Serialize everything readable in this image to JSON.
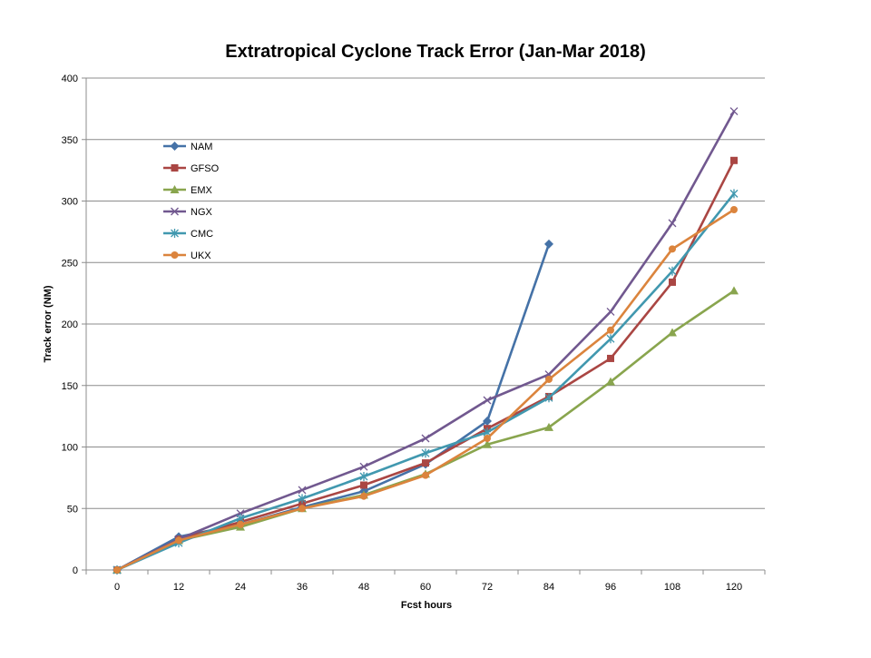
{
  "chart_data": {
    "type": "line",
    "title": "Extratropical Cyclone Track Error  (Jan-Mar 2018)",
    "xlabel": "Fcst hours",
    "ylabel": "Track error  (NM)",
    "ylim": [
      0,
      400
    ],
    "yticks": [
      "0",
      "50",
      "100",
      "150",
      "200",
      "250",
      "300",
      "350",
      "400"
    ],
    "categories": [
      "0",
      "12",
      "24",
      "36",
      "48",
      "60",
      "72",
      "84",
      "96",
      "108",
      "120"
    ],
    "grid": true,
    "legend_position": "upper-left inside plot",
    "series": [
      {
        "name": "NAM",
        "color": "#4572A7",
        "marker": "diamond",
        "values": [
          0,
          27,
          37,
          51,
          64,
          86,
          121,
          265,
          null,
          null,
          null
        ]
      },
      {
        "name": "GFSO",
        "color": "#AA4643",
        "marker": "square",
        "values": [
          0,
          25,
          39,
          54,
          69,
          87,
          115,
          141,
          172,
          234,
          333
        ]
      },
      {
        "name": "EMX",
        "color": "#89A54E",
        "marker": "triangle",
        "values": [
          0,
          24,
          35,
          50,
          61,
          78,
          102,
          116,
          153,
          193,
          227
        ]
      },
      {
        "name": "NGX",
        "color": "#71588F",
        "marker": "x",
        "values": [
          0,
          25,
          46,
          65,
          84,
          107,
          138,
          159,
          210,
          282,
          373
        ]
      },
      {
        "name": "CMC",
        "color": "#4198AF",
        "marker": "star",
        "values": [
          0,
          22,
          42,
          58,
          76,
          95,
          112,
          140,
          188,
          243,
          306
        ]
      },
      {
        "name": "UKX",
        "color": "#DB843D",
        "marker": "circle",
        "values": [
          0,
          24,
          37,
          50,
          60,
          77,
          107,
          155,
          195,
          261,
          293
        ]
      }
    ]
  }
}
